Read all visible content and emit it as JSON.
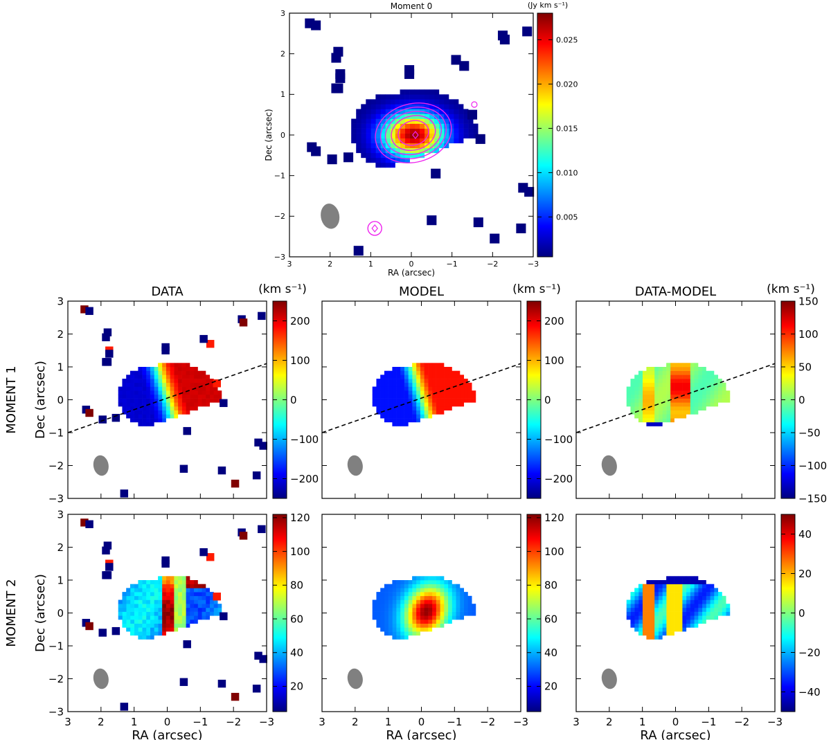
{
  "figure": {
    "row_labels": [
      "MOMENT  1",
      "MOMENT  2"
    ],
    "column_titles": [
      "DATA",
      "MODEL",
      "DATA-MODEL"
    ],
    "colors": {
      "beam": "#808080",
      "contour": "#ee22ee",
      "axes": "#000000",
      "dashed_line": "#000000"
    }
  },
  "chart_data": [
    {
      "id": "moment0",
      "type": "heatmap",
      "title": "Moment 0",
      "cbar_label": "(Jy km s⁻¹)",
      "xlabel": "RA (arcsec)",
      "ylabel": "Dec (arcsec)",
      "xlim": [
        3,
        -3
      ],
      "ylim": [
        -3,
        3
      ],
      "xticks": [
        3,
        2,
        1,
        0,
        -1,
        -2,
        -3
      ],
      "yticks": [
        -3,
        -2,
        -1,
        0,
        1,
        2,
        3
      ],
      "tick_labels_x": [
        "3",
        "2",
        "1",
        "0",
        "−1",
        "−2",
        "−3"
      ],
      "tick_labels_y": [
        "−3",
        "−2",
        "−1",
        "0",
        "1",
        "2",
        "3"
      ],
      "crange": [
        0.0005,
        0.028
      ],
      "cticks": [
        0.005,
        0.01,
        0.015,
        0.02,
        0.025
      ],
      "cticklabels": [
        "0.005",
        "0.010",
        "0.015",
        "0.020",
        "0.025"
      ],
      "field": "flux",
      "peak": 0.027,
      "contours": true,
      "pa_line": false
    },
    {
      "id": "m1-data",
      "type": "heatmap",
      "row": 0,
      "col": 0,
      "field": "vel",
      "noise": true,
      "cbar_label": "(km s⁻¹)",
      "crange": [
        -250,
        250
      ],
      "cticks": [
        -200,
        -100,
        0,
        100,
        200
      ],
      "cticklabels": [
        "−200",
        "−100",
        "0",
        "100",
        "200"
      ],
      "xlim": [
        3,
        -3
      ],
      "ylim": [
        -3,
        3
      ],
      "pa_line": true,
      "vmax": 210,
      "ylabel": "Dec (arcsec)",
      "xlabel": ""
    },
    {
      "id": "m1-model",
      "type": "heatmap",
      "row": 0,
      "col": 1,
      "field": "vel",
      "noise": false,
      "cbar_label": "(km s⁻¹)",
      "crange": [
        -250,
        250
      ],
      "cticks": [
        -200,
        -100,
        0,
        100,
        200
      ],
      "cticklabels": [
        "−200",
        "−100",
        "0",
        "100",
        "200"
      ],
      "xlim": [
        3,
        -3
      ],
      "ylim": [
        -3,
        3
      ],
      "pa_line": true,
      "vmax": 180,
      "ylabel": "",
      "xlabel": ""
    },
    {
      "id": "m1-resid",
      "type": "heatmap",
      "row": 0,
      "col": 2,
      "field": "vres",
      "noise": false,
      "cbar_label": "(km s⁻¹)",
      "crange": [
        -150,
        150
      ],
      "cticks": [
        -150,
        -100,
        -50,
        0,
        50,
        100,
        150
      ],
      "cticklabels": [
        "−150",
        "−100",
        "−50",
        "0",
        "50",
        "100",
        "150"
      ],
      "xlim": [
        3,
        -3
      ],
      "ylim": [
        -3,
        3
      ],
      "pa_line": true,
      "ylabel": "",
      "xlabel": ""
    },
    {
      "id": "m2-data",
      "type": "heatmap",
      "row": 1,
      "col": 0,
      "field": "disp",
      "noise": true,
      "cbar_label": "",
      "crange": [
        5,
        122
      ],
      "cticks": [
        20,
        40,
        60,
        80,
        100,
        120
      ],
      "cticklabels": [
        "20",
        "40",
        "60",
        "80",
        "100",
        "120"
      ],
      "xlim": [
        3,
        -3
      ],
      "ylim": [
        -3,
        3
      ],
      "pa_line": false,
      "ylabel": "Dec (arcsec)",
      "xlabel": "RA (arcsec)"
    },
    {
      "id": "m2-model",
      "type": "heatmap",
      "row": 1,
      "col": 1,
      "field": "dispmodel",
      "noise": false,
      "cbar_label": "",
      "crange": [
        5,
        122
      ],
      "cticks": [
        20,
        40,
        60,
        80,
        100,
        120
      ],
      "cticklabels": [
        "20",
        "40",
        "60",
        "80",
        "100",
        "120"
      ],
      "xlim": [
        3,
        -3
      ],
      "ylim": [
        -3,
        3
      ],
      "pa_line": false,
      "ylabel": "",
      "xlabel": "RA (arcsec)"
    },
    {
      "id": "m2-resid",
      "type": "heatmap",
      "row": 1,
      "col": 2,
      "field": "dres",
      "noise": false,
      "cbar_label": "",
      "crange": [
        -50,
        50
      ],
      "cticks": [
        -40,
        -20,
        0,
        20,
        40
      ],
      "cticklabels": [
        "−40",
        "−20",
        "0",
        "20",
        "40"
      ],
      "xlim": [
        3,
        -3
      ],
      "ylim": [
        -3,
        3
      ],
      "pa_line": false,
      "ylabel": "",
      "xlabel": "RA (arcsec)"
    }
  ]
}
